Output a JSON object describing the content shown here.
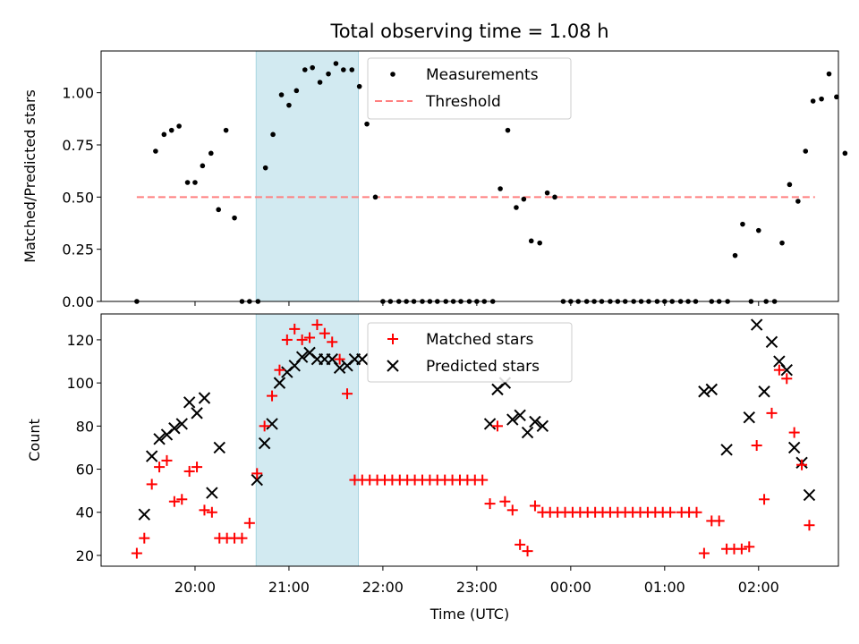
{
  "chart_data": {
    "title": "Total observing time = 1.08 h",
    "xlabel": "Time (UTC)",
    "x_unit": "hours since 00:00 UTC of the first night",
    "x_range": [
      19.0,
      26.85
    ],
    "x_ticks": [
      {
        "value": 20,
        "label": "20:00"
      },
      {
        "value": 21,
        "label": "21:00"
      },
      {
        "value": 22,
        "label": "22:00"
      },
      {
        "value": 23,
        "label": "23:00"
      },
      {
        "value": 24,
        "label": "00:00"
      },
      {
        "value": 25,
        "label": "01:00"
      },
      {
        "value": 26,
        "label": "02:00"
      }
    ],
    "highlight_span": {
      "x0": 20.65,
      "x1": 21.74,
      "color": "#add8e6"
    },
    "panels": [
      {
        "type": "scatter",
        "ylabel": "Matched/Predicted stars",
        "ylim": [
          0,
          1.2
        ],
        "y_ticks": [
          {
            "value": 0,
            "label": "0.00"
          },
          {
            "value": 0.25,
            "label": "0.25"
          },
          {
            "value": 0.5,
            "label": "0.50"
          },
          {
            "value": 0.75,
            "label": "0.75"
          },
          {
            "value": 1.0,
            "label": "1.00"
          }
        ],
        "legend": {
          "position": "top-center",
          "entries": [
            {
              "label": "Measurements",
              "marker": "dot",
              "color": "#000000"
            },
            {
              "label": "Threshold",
              "marker": "dashed-line",
              "color": "#ff7f7f"
            }
          ]
        },
        "threshold": {
          "value": 0.5,
          "x0": 19.38,
          "x1": 26.6,
          "color": "#ff7f7f"
        },
        "measurements": [
          [
            19.38,
            0
          ],
          [
            19.58,
            0.72
          ],
          [
            19.67,
            0.8
          ],
          [
            19.75,
            0.82
          ],
          [
            19.83,
            0.84
          ],
          [
            19.92,
            0.57
          ],
          [
            20.0,
            0.57
          ],
          [
            20.08,
            0.65
          ],
          [
            20.17,
            0.71
          ],
          [
            20.25,
            0.44
          ],
          [
            20.33,
            0.82
          ],
          [
            20.42,
            0.4
          ],
          [
            20.5,
            0
          ],
          [
            20.58,
            0
          ],
          [
            20.67,
            0
          ],
          [
            20.75,
            0.64
          ],
          [
            20.83,
            0.8
          ],
          [
            20.92,
            0.99
          ],
          [
            21.0,
            0.94
          ],
          [
            21.08,
            1.01
          ],
          [
            21.17,
            1.11
          ],
          [
            21.25,
            1.12
          ],
          [
            21.33,
            1.05
          ],
          [
            21.42,
            1.09
          ],
          [
            21.5,
            1.14
          ],
          [
            21.58,
            1.11
          ],
          [
            21.67,
            1.11
          ],
          [
            21.75,
            1.03
          ],
          [
            21.83,
            0.85
          ],
          [
            21.92,
            0.5
          ],
          [
            22.0,
            0
          ],
          [
            22.08,
            0
          ],
          [
            22.17,
            0
          ],
          [
            22.25,
            0
          ],
          [
            22.33,
            0
          ],
          [
            22.42,
            0
          ],
          [
            22.5,
            0
          ],
          [
            22.58,
            0
          ],
          [
            22.67,
            0
          ],
          [
            22.75,
            0
          ],
          [
            22.83,
            0
          ],
          [
            22.92,
            0
          ],
          [
            23.0,
            0
          ],
          [
            23.08,
            0
          ],
          [
            23.17,
            0
          ],
          [
            23.25,
            0.54
          ],
          [
            23.33,
            0.82
          ],
          [
            23.42,
            0.45
          ],
          [
            23.5,
            0.49
          ],
          [
            23.58,
            0.29
          ],
          [
            23.67,
            0.28
          ],
          [
            23.75,
            0.52
          ],
          [
            23.83,
            0.5
          ],
          [
            23.92,
            0
          ],
          [
            24.0,
            0
          ],
          [
            24.08,
            0
          ],
          [
            24.17,
            0
          ],
          [
            24.25,
            0
          ],
          [
            24.33,
            0
          ],
          [
            24.42,
            0
          ],
          [
            24.5,
            0
          ],
          [
            24.58,
            0
          ],
          [
            24.67,
            0
          ],
          [
            24.75,
            0
          ],
          [
            24.83,
            0
          ],
          [
            24.92,
            0
          ],
          [
            25.0,
            0
          ],
          [
            25.08,
            0
          ],
          [
            25.17,
            0
          ],
          [
            25.25,
            0
          ],
          [
            25.33,
            0
          ],
          [
            25.5,
            0
          ],
          [
            25.58,
            0
          ],
          [
            25.67,
            0
          ],
          [
            25.75,
            0.22
          ],
          [
            25.83,
            0.37
          ],
          [
            25.92,
            0
          ],
          [
            26.0,
            0.34
          ],
          [
            26.08,
            0
          ],
          [
            26.17,
            0
          ],
          [
            26.25,
            0.28
          ],
          [
            26.33,
            0.56
          ],
          [
            26.42,
            0.48
          ],
          [
            26.5,
            0.72
          ],
          [
            26.58,
            0.96
          ],
          [
            26.67,
            0.97
          ],
          [
            26.75,
            1.09
          ],
          [
            26.83,
            0.98
          ],
          [
            26.92,
            0.71
          ]
        ]
      },
      {
        "type": "scatter",
        "ylabel": "Count",
        "ylim": [
          15,
          132
        ],
        "y_ticks": [
          {
            "value": 20,
            "label": "20"
          },
          {
            "value": 40,
            "label": "40"
          },
          {
            "value": 60,
            "label": "60"
          },
          {
            "value": 80,
            "label": "80"
          },
          {
            "value": 100,
            "label": "100"
          },
          {
            "value": 120,
            "label": "120"
          }
        ],
        "legend": {
          "position": "top-center",
          "entries": [
            {
              "label": "Matched stars",
              "marker": "plus",
              "color": "#ff0000"
            },
            {
              "label": "Predicted stars",
              "marker": "x",
              "color": "#000000"
            }
          ]
        },
        "matched": [
          [
            19.38,
            21
          ],
          [
            19.46,
            28
          ],
          [
            19.54,
            53
          ],
          [
            19.62,
            61
          ],
          [
            19.7,
            64
          ],
          [
            19.78,
            45
          ],
          [
            19.86,
            46
          ],
          [
            19.94,
            59
          ],
          [
            20.02,
            61
          ],
          [
            20.1,
            41
          ],
          [
            20.18,
            40
          ],
          [
            20.26,
            28
          ],
          [
            20.34,
            28
          ],
          [
            20.42,
            28
          ],
          [
            20.5,
            28
          ],
          [
            20.58,
            35
          ],
          [
            20.66,
            58
          ],
          [
            20.74,
            80
          ],
          [
            20.82,
            94
          ],
          [
            20.9,
            106
          ],
          [
            20.98,
            120
          ],
          [
            21.06,
            125
          ],
          [
            21.14,
            120
          ],
          [
            21.22,
            121
          ],
          [
            21.3,
            127
          ],
          [
            21.38,
            123
          ],
          [
            21.46,
            119
          ],
          [
            21.54,
            111
          ],
          [
            21.62,
            95
          ],
          [
            21.7,
            55
          ],
          [
            21.78,
            55
          ],
          [
            21.86,
            55
          ],
          [
            21.94,
            55
          ],
          [
            22.02,
            55
          ],
          [
            22.1,
            55
          ],
          [
            22.18,
            55
          ],
          [
            22.26,
            55
          ],
          [
            22.34,
            55
          ],
          [
            22.42,
            55
          ],
          [
            22.5,
            55
          ],
          [
            22.58,
            55
          ],
          [
            22.66,
            55
          ],
          [
            22.74,
            55
          ],
          [
            22.82,
            55
          ],
          [
            22.9,
            55
          ],
          [
            22.98,
            55
          ],
          [
            23.06,
            55
          ],
          [
            23.14,
            44
          ],
          [
            23.22,
            80
          ],
          [
            23.3,
            45
          ],
          [
            23.38,
            41
          ],
          [
            23.46,
            25
          ],
          [
            23.54,
            22
          ],
          [
            23.62,
            43
          ],
          [
            23.7,
            40
          ],
          [
            23.78,
            40
          ],
          [
            23.86,
            40
          ],
          [
            23.94,
            40
          ],
          [
            24.02,
            40
          ],
          [
            24.1,
            40
          ],
          [
            24.18,
            40
          ],
          [
            24.26,
            40
          ],
          [
            24.34,
            40
          ],
          [
            24.42,
            40
          ],
          [
            24.5,
            40
          ],
          [
            24.58,
            40
          ],
          [
            24.66,
            40
          ],
          [
            24.74,
            40
          ],
          [
            24.82,
            40
          ],
          [
            24.9,
            40
          ],
          [
            24.98,
            40
          ],
          [
            25.06,
            40
          ],
          [
            25.18,
            40
          ],
          [
            25.26,
            40
          ],
          [
            25.34,
            40
          ],
          [
            25.42,
            21
          ],
          [
            25.5,
            36
          ],
          [
            25.58,
            36
          ],
          [
            25.66,
            23
          ],
          [
            25.74,
            23
          ],
          [
            25.82,
            23
          ],
          [
            25.9,
            24
          ],
          [
            25.98,
            71
          ],
          [
            26.06,
            46
          ],
          [
            26.14,
            86
          ],
          [
            26.22,
            106
          ],
          [
            26.3,
            102
          ],
          [
            26.38,
            77
          ],
          [
            26.46,
            62
          ],
          [
            26.54,
            34
          ]
        ],
        "predicted": [
          [
            19.46,
            39
          ],
          [
            19.54,
            66
          ],
          [
            19.62,
            74
          ],
          [
            19.7,
            76
          ],
          [
            19.78,
            79
          ],
          [
            19.86,
            81
          ],
          [
            19.94,
            91
          ],
          [
            20.02,
            86
          ],
          [
            20.1,
            93
          ],
          [
            20.18,
            49
          ],
          [
            20.26,
            70
          ],
          [
            20.66,
            55
          ],
          [
            20.74,
            72
          ],
          [
            20.82,
            81
          ],
          [
            20.9,
            100
          ],
          [
            20.98,
            105
          ],
          [
            21.06,
            108
          ],
          [
            21.14,
            112
          ],
          [
            21.22,
            114
          ],
          [
            21.3,
            111
          ],
          [
            21.38,
            111
          ],
          [
            21.46,
            111
          ],
          [
            21.54,
            107
          ],
          [
            21.62,
            108
          ],
          [
            21.7,
            111
          ],
          [
            21.78,
            111
          ],
          [
            23.14,
            81
          ],
          [
            23.22,
            97
          ],
          [
            23.3,
            100
          ],
          [
            23.38,
            83
          ],
          [
            23.46,
            85
          ],
          [
            23.54,
            77
          ],
          [
            23.62,
            82
          ],
          [
            23.7,
            80
          ],
          [
            25.42,
            96
          ],
          [
            25.5,
            97
          ],
          [
            25.66,
            69
          ],
          [
            25.9,
            84
          ],
          [
            25.98,
            127
          ],
          [
            26.06,
            96
          ],
          [
            26.14,
            119
          ],
          [
            26.22,
            110
          ],
          [
            26.3,
            106
          ],
          [
            26.38,
            70
          ],
          [
            26.46,
            63
          ],
          [
            26.54,
            48
          ]
        ]
      }
    ]
  }
}
